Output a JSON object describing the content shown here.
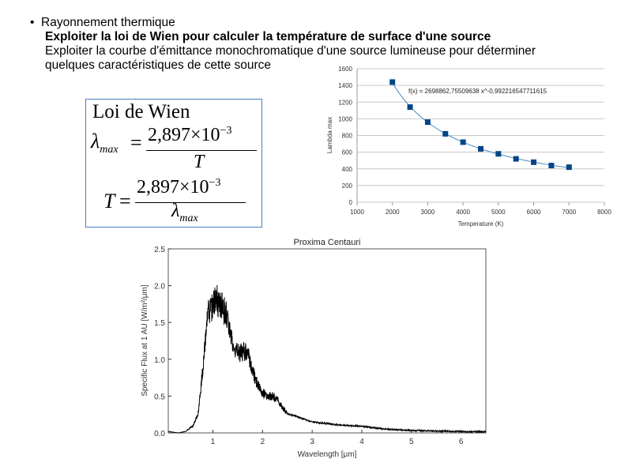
{
  "slide": {
    "bullet": "Rayonnement thermique",
    "heading": "Exploiter la loi de Wien pour calculer la température de surface d'une source",
    "line1": "Exploiter la courbe d'émittance monochromatique d'une source lumineuse pour déterminer",
    "line2": "quelques caractéristiques de cette source"
  },
  "formula": {
    "title": "Loi de Wien",
    "lambda": "λ",
    "max": "max",
    "eq": "=",
    "numerator": "2,897×10",
    "exponent": "−3",
    "T": "T"
  },
  "chart_data": [
    {
      "type": "scatter",
      "title": "",
      "xlabel": "Temperature (K)",
      "ylabel": "Lambda max",
      "xlim": [
        1000,
        8000
      ],
      "ylim": [
        0,
        1600
      ],
      "xticks": [
        1000,
        2000,
        3000,
        4000,
        5000,
        6000,
        7000,
        8000
      ],
      "yticks": [
        0,
        200,
        400,
        600,
        800,
        1000,
        1200,
        1400,
        1600
      ],
      "grid": true,
      "x": [
        2000,
        2500,
        3000,
        3500,
        4000,
        4500,
        5000,
        5500,
        6000,
        6500,
        7000
      ],
      "y": [
        1440,
        1140,
        960,
        820,
        720,
        640,
        580,
        520,
        480,
        440,
        420
      ],
      "trendline": {
        "label": "f(x) = 2698862,75509638 x^-0,992216547711615",
        "a": 2698862.75509638,
        "b": -0.992216547711615
      },
      "color": "#004586"
    },
    {
      "type": "line",
      "title": "Proxima Centauri",
      "xlabel": "Wavelength [μm]",
      "ylabel": "Specific Flux at 1 AU [W/m²/μm]",
      "xlim": [
        0.1,
        6.5
      ],
      "ylim": [
        0,
        2.5
      ],
      "xticks": [
        1,
        2,
        3,
        4,
        5,
        6
      ],
      "yticks": [
        "0.0",
        "0.5",
        "1.0",
        "1.5",
        "2.0",
        "2.5"
      ],
      "x": [
        0.1,
        0.3,
        0.45,
        0.6,
        0.7,
        0.8,
        0.9,
        1.0,
        1.1,
        1.2,
        1.3,
        1.4,
        1.5,
        1.6,
        1.7,
        1.8,
        1.9,
        2.0,
        2.1,
        2.2,
        2.3,
        2.4,
        2.5,
        2.7,
        3.0,
        3.5,
        4.0,
        4.5,
        5.0,
        5.5,
        6.0,
        6.5
      ],
      "y": [
        0.02,
        0.0,
        0.02,
        0.1,
        0.25,
        0.9,
        1.6,
        1.75,
        1.8,
        1.7,
        1.55,
        1.2,
        1.08,
        1.1,
        1.12,
        0.85,
        0.65,
        0.55,
        0.5,
        0.5,
        0.45,
        0.35,
        0.26,
        0.22,
        0.15,
        0.11,
        0.09,
        0.05,
        0.035,
        0.025,
        0.02,
        0.015
      ],
      "color": "#000000"
    }
  ]
}
